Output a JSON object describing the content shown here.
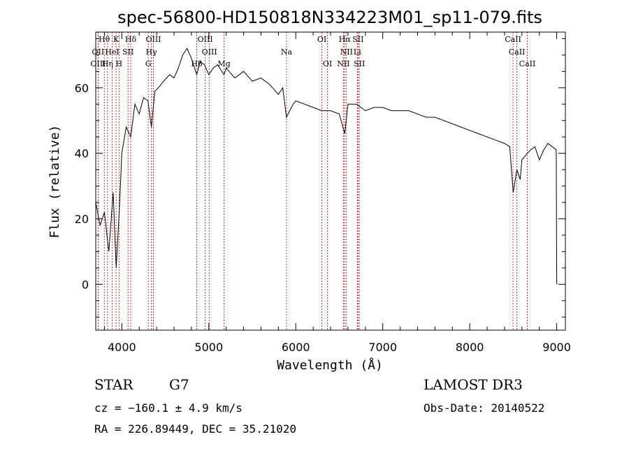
{
  "chart_data": {
    "type": "line",
    "title": "spec-56800-HD150818N334223M01_sp11-079.fits",
    "xlabel": "Wavelength (Å)",
    "ylabel": "Flux (relative)",
    "xlim": [
      3700,
      9100
    ],
    "ylim": [
      -14,
      77
    ],
    "x_ticks": [
      4000,
      5000,
      6000,
      7000,
      8000,
      9000
    ],
    "y_ticks": [
      0,
      20,
      40,
      60
    ],
    "grid": false,
    "series": [
      {
        "name": "flux",
        "x": [
          3700,
          3750,
          3800,
          3850,
          3900,
          3935,
          3970,
          4000,
          4050,
          4102,
          4150,
          4200,
          4250,
          4300,
          4340,
          4380,
          4420,
          4480,
          4550,
          4600,
          4650,
          4700,
          4750,
          4800,
          4861,
          4900,
          4950,
          5000,
          5050,
          5100,
          5175,
          5200,
          5300,
          5400,
          5500,
          5600,
          5700,
          5800,
          5850,
          5893,
          5930,
          5970,
          6000,
          6100,
          6200,
          6300,
          6400,
          6500,
          6563,
          6600,
          6700,
          6800,
          6900,
          7000,
          7100,
          7200,
          7300,
          7400,
          7500,
          7600,
          7700,
          7800,
          7900,
          8000,
          8100,
          8200,
          8300,
          8400,
          8460,
          8500,
          8542,
          8580,
          8600,
          8662,
          8700,
          8750,
          8800,
          8850,
          8900,
          8950,
          8995,
          9000
        ],
        "y": [
          25,
          18,
          22,
          10,
          28,
          5,
          22,
          40,
          48,
          45,
          55,
          52,
          57,
          56,
          48,
          59,
          60,
          62,
          64,
          63,
          66,
          70,
          72,
          69,
          64,
          68,
          67,
          64,
          66,
          67,
          64,
          66,
          63,
          65,
          62,
          63,
          61,
          58,
          60,
          51,
          53,
          55,
          56,
          55,
          54,
          53,
          53,
          52,
          46,
          55,
          55,
          53,
          54,
          54,
          53,
          53,
          53,
          52,
          51,
          51,
          50,
          49,
          48,
          47,
          46,
          45,
          44,
          43,
          42,
          28,
          35,
          32,
          38,
          40,
          41,
          42,
          38,
          41,
          43,
          42,
          41,
          0
        ]
      }
    ],
    "spectral_lines": [
      {
        "label": "Hθ",
        "x": 3798,
        "row": 1
      },
      {
        "label": "K",
        "x": 3934,
        "row": 1
      },
      {
        "label": "Hδ",
        "x": 4102,
        "row": 1
      },
      {
        "label": "OIII",
        "x": 4363,
        "row": 1
      },
      {
        "label": "OIII",
        "x": 4959,
        "row": 1
      },
      {
        "label": "OI",
        "x": 6300,
        "row": 1
      },
      {
        "label": "Hα",
        "x": 6563,
        "row": 1
      },
      {
        "label": "SII",
        "x": 6716,
        "row": 1
      },
      {
        "label": "CaII",
        "x": 8498,
        "row": 1
      },
      {
        "label": "OII",
        "x": 3727,
        "row": 2
      },
      {
        "label": "HeI",
        "x": 3889,
        "row": 2
      },
      {
        "label": "SII",
        "x": 4072,
        "row": 2
      },
      {
        "label": "Hγ",
        "x": 4340,
        "row": 2
      },
      {
        "label": "OIII",
        "x": 5007,
        "row": 2
      },
      {
        "label": "Na",
        "x": 5893,
        "row": 2
      },
      {
        "label": "NII",
        "x": 6583,
        "row": 2
      },
      {
        "label": "Li",
        "x": 6708,
        "row": 2
      },
      {
        "label": "CaII",
        "x": 8542,
        "row": 2
      },
      {
        "label": "OIII",
        "x": 3727,
        "row": 3
      },
      {
        "label": "Hη",
        "x": 3835,
        "row": 3
      },
      {
        "label": "H",
        "x": 3968,
        "row": 3
      },
      {
        "label": "G",
        "x": 4304,
        "row": 3
      },
      {
        "label": "Hβ",
        "x": 4861,
        "row": 3
      },
      {
        "label": "Mg",
        "x": 5175,
        "row": 3
      },
      {
        "label": "OI",
        "x": 6364,
        "row": 3
      },
      {
        "label": "NII",
        "x": 6548,
        "row": 3
      },
      {
        "label": "SII",
        "x": 6731,
        "row": 3
      },
      {
        "label": "CaII",
        "x": 8662,
        "row": 3
      }
    ],
    "annotations": {
      "class_label": "STAR",
      "subclass": "G7",
      "survey": "LAMOST DR3",
      "redshift": "cz = −160.1 ± 4.9 km/s",
      "obs_date": "Obs-Date: 20140522",
      "coords": "RA = 226.89449, DEC =  35.21020"
    },
    "colors": {
      "spectrum": "#000000",
      "line_marker": "#c00000",
      "axis": "#000000"
    }
  }
}
